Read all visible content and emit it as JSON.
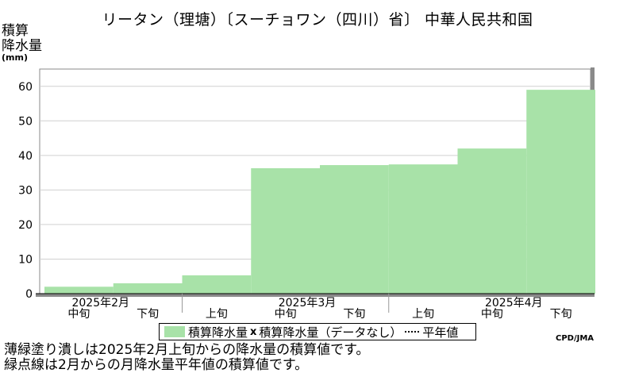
{
  "chart_data": {
    "type": "bar",
    "title": "リータン（理塘）〔スーチョワン（四川）省〕 中華人民共和国",
    "ylabel": "積算降水量",
    "yunit": "(mm)",
    "ylim": [
      0,
      65
    ],
    "yticks": [
      0,
      10,
      20,
      30,
      40,
      50,
      60
    ],
    "grid": true,
    "categories": [
      "2月中旬",
      "2月下旬",
      "3月上旬",
      "3月中旬",
      "3月下旬",
      "4月上旬",
      "4月中旬",
      "4月下旬"
    ],
    "x_month_labels": [
      "2025年2月",
      "2025年3月",
      "2025年4月"
    ],
    "x_dekad_labels": [
      "中旬",
      "下旬",
      "上旬",
      "中旬",
      "下旬",
      "上旬",
      "中旬",
      "下旬"
    ],
    "series": [
      {
        "name": "積算降水量",
        "color": "#a8e2a8",
        "values": [
          2.0,
          3.0,
          5.3,
          36.3,
          37.2,
          37.4,
          42.0,
          59.0
        ]
      }
    ],
    "legend": {
      "items": [
        "積算降水量",
        "積算降水量（データなし）",
        "平年値"
      ],
      "placement": "bottom"
    }
  },
  "credit": "CPD/JMA",
  "notes": [
    "薄緑塗り潰しは2025年2月上旬からの降水量の積算値です。",
    "緑点線は2月からの月降水量平年値の積算値です。"
  ]
}
